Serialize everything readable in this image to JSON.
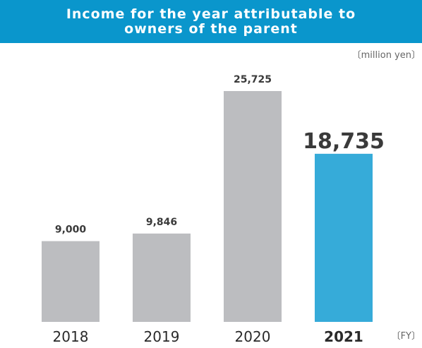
{
  "chart_data": {
    "type": "bar",
    "title_lines": [
      "Income for the year attributable to",
      "owners of the parent"
    ],
    "unit": "〔million yen〕",
    "x_unit": "〔FY〕",
    "categories": [
      "2018",
      "2019",
      "2020",
      "2021"
    ],
    "values": [
      9000,
      9846,
      25725,
      18735
    ],
    "value_labels": [
      "9,000",
      "9,846",
      "25,725",
      "18,735"
    ],
    "highlight_index": 3,
    "colors": {
      "default": "#bcbdc0",
      "highlight": "#36abd9",
      "title_bg": "#0a96cc"
    }
  }
}
